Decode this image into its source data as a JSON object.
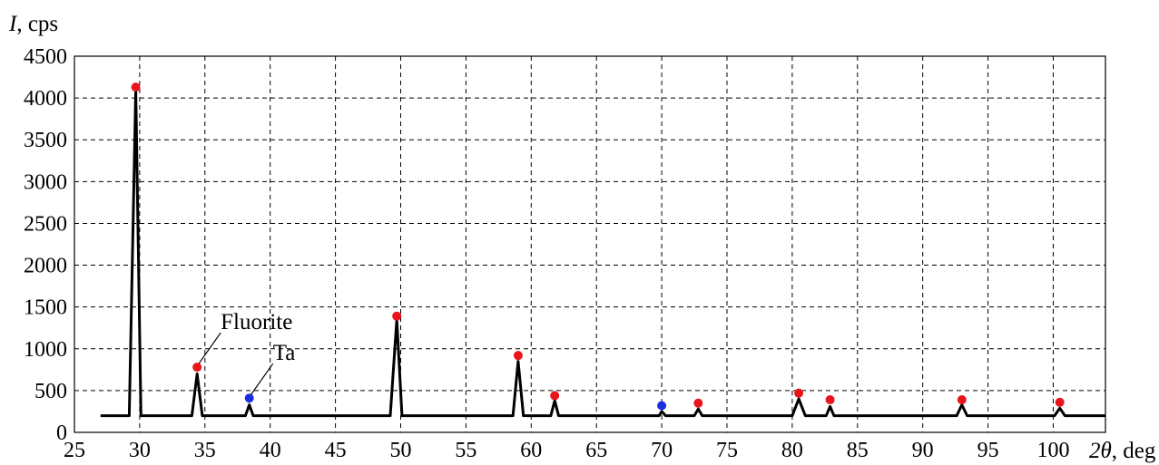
{
  "chart_data": {
    "type": "line",
    "ylabel_symbol": "I",
    "ylabel_unit": ", cps",
    "xlabel_symbol": "2θ",
    "xlabel_unit": ", deg",
    "xlim": [
      25,
      104
    ],
    "ylim": [
      0,
      4500
    ],
    "x_ticks": [
      25,
      30,
      35,
      40,
      45,
      50,
      55,
      60,
      65,
      70,
      75,
      80,
      85,
      90,
      95,
      100
    ],
    "y_ticks": [
      0,
      500,
      1000,
      1500,
      2000,
      2500,
      3000,
      3500,
      4000,
      4500
    ],
    "grid": true,
    "baseline": 200,
    "series": [
      {
        "x": [
          27,
          29.2,
          29.7,
          30.1,
          34.0,
          34.4,
          34.8,
          38.1,
          38.4,
          38.7,
          49.2,
          49.7,
          50.1,
          58.6,
          59.0,
          59.4,
          61.5,
          61.8,
          62.1,
          69.8,
          70.0,
          70.3,
          72.5,
          72.8,
          73.1,
          80.0,
          80.5,
          81.0,
          82.6,
          82.9,
          83.2,
          92.6,
          93.0,
          93.4,
          100.1,
          100.5,
          100.9,
          104
        ],
        "y": [
          200,
          200,
          4100,
          200,
          200,
          700,
          200,
          200,
          330,
          200,
          200,
          1350,
          200,
          200,
          850,
          200,
          200,
          380,
          200,
          200,
          250,
          200,
          200,
          280,
          200,
          200,
          400,
          200,
          200,
          310,
          200,
          200,
          330,
          200,
          200,
          290,
          200,
          200
        ]
      }
    ],
    "markers": [
      {
        "phase": "Fluorite",
        "color": "#e8151b",
        "points": [
          [
            29.7,
            4130
          ],
          [
            34.4,
            780
          ],
          [
            49.7,
            1390
          ],
          [
            59.0,
            920
          ],
          [
            61.8,
            440
          ],
          [
            72.8,
            350
          ],
          [
            80.5,
            470
          ],
          [
            82.9,
            390
          ],
          [
            93.0,
            390
          ],
          [
            100.5,
            360
          ]
        ]
      },
      {
        "phase": "Ta",
        "color": "#1c2fe0",
        "points": [
          [
            38.4,
            410
          ],
          [
            70.0,
            320
          ]
        ]
      }
    ],
    "annotations": [
      {
        "text": "Fluorite",
        "x": 34.4,
        "y": 780
      },
      {
        "text": "Ta",
        "x": 38.4,
        "y": 410
      }
    ]
  }
}
